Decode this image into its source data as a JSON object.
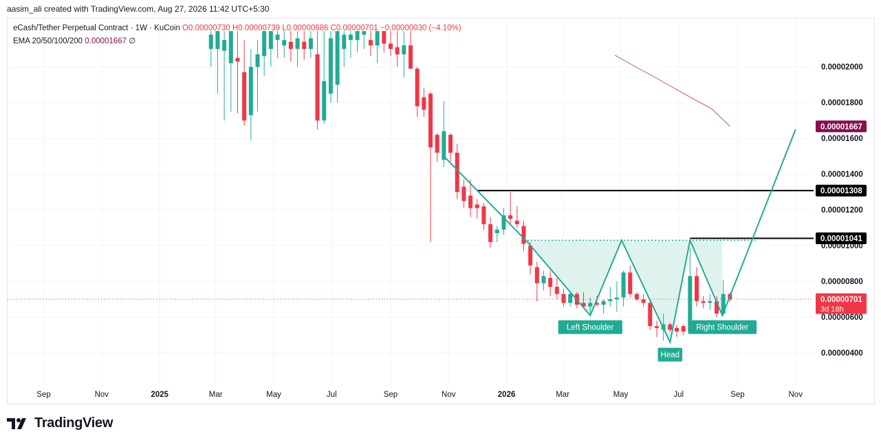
{
  "header": {
    "credit": "aasim_ali created with TradingView.com, Aug 27, 2026 11:42 UTC+5:30"
  },
  "legend": {
    "symbol": "eCash/Tether Perpetual Contract · 1W · KuCoin",
    "open": "O0.00000730",
    "high": "H0.00000739",
    "low": "L0.00000686",
    "close": "C0.00000701",
    "change": "−0.00000030 (−4.10%)",
    "ema_label": "EMA 20/50/100/200",
    "ema_value": "0.00001667",
    "ema_suffix": "∅"
  },
  "footer": {
    "brand": "TradingView"
  },
  "colors": {
    "up": "#22ab94",
    "down": "#f23645",
    "ema": "#c2787f",
    "pattern_line": "#22ab94",
    "pattern_fill": "#d7f0ea",
    "grid": "#f0f3fa",
    "axis_text": "#131722",
    "ema_label_bg": "#880e4f",
    "price_label_bg": "#f23645",
    "level_label_bg": "#000000"
  },
  "chart_data": {
    "type": "candlestick",
    "timeframe": "1W",
    "x_ticks": [
      {
        "date": "2024-09-01",
        "label": "Sep",
        "bold": false
      },
      {
        "date": "2024-11-01",
        "label": "Nov",
        "bold": false
      },
      {
        "date": "2025-01-01",
        "label": "2025",
        "bold": true
      },
      {
        "date": "2025-03-01",
        "label": "Mar",
        "bold": false
      },
      {
        "date": "2025-05-01",
        "label": "May",
        "bold": false
      },
      {
        "date": "2025-07-01",
        "label": "Jul",
        "bold": false
      },
      {
        "date": "2025-09-01",
        "label": "Sep",
        "bold": false
      },
      {
        "date": "2025-11-01",
        "label": "Nov",
        "bold": false
      },
      {
        "date": "2026-01-01",
        "label": "2026",
        "bold": true
      },
      {
        "date": "2026-03-01",
        "label": "Mar",
        "bold": false
      },
      {
        "date": "2026-05-01",
        "label": "May",
        "bold": false
      },
      {
        "date": "2026-07-01",
        "label": "Jul",
        "bold": false
      },
      {
        "date": "2026-09-01",
        "label": "Sep",
        "bold": false
      },
      {
        "date": "2026-11-01",
        "label": "Nov",
        "bold": false
      }
    ],
    "x_range": [
      "2024-07-25",
      "2026-11-20"
    ],
    "y_ticks": [
      {
        "value": 4e-06,
        "label": "0.00000400"
      },
      {
        "value": 6e-06,
        "label": "0.00000600"
      },
      {
        "value": 8e-06,
        "label": "0.00000800"
      },
      {
        "value": 1e-05,
        "label": "0.00001000"
      },
      {
        "value": 1.2e-05,
        "label": "0.00001200"
      },
      {
        "value": 1.4e-05,
        "label": "0.00001400"
      },
      {
        "value": 1.6e-05,
        "label": "0.00001600"
      },
      {
        "value": 1.8e-05,
        "label": "0.00001800"
      },
      {
        "value": 2e-05,
        "label": "0.00002000"
      }
    ],
    "y_range": [
      2.2e-06,
      2.27e-05
    ],
    "candles": [
      {
        "date": "2025-02-24",
        "o": 21.0,
        "h": 22.0,
        "l": 20.0,
        "c": 21.8
      },
      {
        "date": "2025-03-03",
        "o": 21.0,
        "h": 22.0,
        "l": 18.5,
        "c": 22.0
      },
      {
        "date": "2025-03-10",
        "o": 20.9,
        "h": 22.0,
        "l": 17.0,
        "c": 21.5
      },
      {
        "date": "2025-03-17",
        "o": 20.2,
        "h": 22.0,
        "l": 17.5,
        "c": 22.0
      },
      {
        "date": "2025-03-24",
        "o": 20.5,
        "h": 22.0,
        "l": 17.4,
        "c": 20.3
      },
      {
        "date": "2025-03-31",
        "o": 19.7,
        "h": 21.5,
        "l": 16.7,
        "c": 17.0
      },
      {
        "date": "2025-04-07",
        "o": 17.3,
        "h": 21.0,
        "l": 15.9,
        "c": 20.0
      },
      {
        "date": "2025-04-14",
        "o": 20.0,
        "h": 21.5,
        "l": 17.5,
        "c": 20.7
      },
      {
        "date": "2025-04-21",
        "o": 20.6,
        "h": 22.0,
        "l": 19.5,
        "c": 22.0
      },
      {
        "date": "2025-04-28",
        "o": 21.0,
        "h": 22.0,
        "l": 20.0,
        "c": 22.0
      },
      {
        "date": "2025-05-05",
        "o": 21.5,
        "h": 22.0,
        "l": 20.5,
        "c": 21.8
      },
      {
        "date": "2025-05-12",
        "o": 21.2,
        "h": 22.0,
        "l": 20.5,
        "c": 21.5
      },
      {
        "date": "2025-05-19",
        "o": 21.4,
        "h": 22.0,
        "l": 20.3,
        "c": 21.0
      },
      {
        "date": "2025-05-26",
        "o": 21.0,
        "h": 22.0,
        "l": 20.0,
        "c": 21.6
      },
      {
        "date": "2025-06-02",
        "o": 21.4,
        "h": 22.0,
        "l": 20.4,
        "c": 21.0
      },
      {
        "date": "2025-06-09",
        "o": 21.0,
        "h": 22.0,
        "l": 20.5,
        "c": 21.6
      },
      {
        "date": "2025-06-16",
        "o": 20.7,
        "h": 22.0,
        "l": 16.5,
        "c": 17.0
      },
      {
        "date": "2025-06-23",
        "o": 17.0,
        "h": 22.0,
        "l": 16.8,
        "c": 19.2
      },
      {
        "date": "2025-06-30",
        "o": 18.5,
        "h": 22.0,
        "l": 18.0,
        "c": 21.6
      },
      {
        "date": "2025-07-07",
        "o": 19.0,
        "h": 22.0,
        "l": 18.0,
        "c": 22.0
      },
      {
        "date": "2025-07-14",
        "o": 21.0,
        "h": 22.0,
        "l": 20.0,
        "c": 21.8
      },
      {
        "date": "2025-07-21",
        "o": 21.5,
        "h": 22.0,
        "l": 20.5,
        "c": 21.8
      },
      {
        "date": "2025-07-28",
        "o": 21.5,
        "h": 22.0,
        "l": 20.8,
        "c": 22.0
      },
      {
        "date": "2025-08-04",
        "o": 21.8,
        "h": 22.0,
        "l": 21.0,
        "c": 22.0
      },
      {
        "date": "2025-08-11",
        "o": 21.5,
        "h": 22.0,
        "l": 20.6,
        "c": 21.2
      },
      {
        "date": "2025-08-18",
        "o": 21.2,
        "h": 22.0,
        "l": 20.2,
        "c": 22.0
      },
      {
        "date": "2025-08-25",
        "o": 22.0,
        "h": 22.0,
        "l": 20.8,
        "c": 21.3
      },
      {
        "date": "2025-09-01",
        "o": 21.3,
        "h": 22.0,
        "l": 20.6,
        "c": 21.0
      },
      {
        "date": "2025-09-08",
        "o": 21.1,
        "h": 22.0,
        "l": 20.0,
        "c": 20.7
      },
      {
        "date": "2025-09-15",
        "o": 20.7,
        "h": 22.0,
        "l": 19.4,
        "c": 21.2
      },
      {
        "date": "2025-09-22",
        "o": 21.2,
        "h": 22.0,
        "l": 19.9,
        "c": 19.9
      },
      {
        "date": "2025-09-29",
        "o": 19.9,
        "h": 20.0,
        "l": 17.2,
        "c": 17.8
      },
      {
        "date": "2025-10-06",
        "o": 18.3,
        "h": 18.8,
        "l": 17.2,
        "c": 17.6
      },
      {
        "date": "2025-10-13",
        "o": 18.5,
        "h": 18.6,
        "l": 10.2,
        "c": 15.5
      },
      {
        "date": "2025-10-20",
        "o": 16.2,
        "h": 16.3,
        "l": 14.7,
        "c": 15.2
      },
      {
        "date": "2025-10-27",
        "o": 14.8,
        "h": 18.1,
        "l": 14.4,
        "c": 16.4
      },
      {
        "date": "2025-11-03",
        "o": 16.2,
        "h": 16.3,
        "l": 14.7,
        "c": 15.2
      },
      {
        "date": "2025-11-10",
        "o": 15.2,
        "h": 15.7,
        "l": 12.6,
        "c": 13.0
      },
      {
        "date": "2025-11-17",
        "o": 13.3,
        "h": 13.7,
        "l": 12.1,
        "c": 12.5
      },
      {
        "date": "2025-11-24",
        "o": 12.8,
        "h": 13.7,
        "l": 11.6,
        "c": 12.1
      },
      {
        "date": "2025-12-01",
        "o": 12.3,
        "h": 12.6,
        "l": 11.5,
        "c": 12.1
      },
      {
        "date": "2025-12-08",
        "o": 12.2,
        "h": 12.4,
        "l": 10.9,
        "c": 11.2
      },
      {
        "date": "2025-12-15",
        "o": 11.2,
        "h": 11.6,
        "l": 9.9,
        "c": 10.2
      },
      {
        "date": "2025-12-22",
        "o": 10.7,
        "h": 11.1,
        "l": 10.2,
        "c": 10.9
      },
      {
        "date": "2025-12-29",
        "o": 10.9,
        "h": 12.1,
        "l": 10.6,
        "c": 11.7
      },
      {
        "date": "2026-01-05",
        "o": 11.7,
        "h": 13.0,
        "l": 11.2,
        "c": 11.5
      },
      {
        "date": "2026-01-12",
        "o": 11.4,
        "h": 12.2,
        "l": 11.0,
        "c": 11.2
      },
      {
        "date": "2026-01-19",
        "o": 11.1,
        "h": 11.4,
        "l": 9.7,
        "c": 10.1
      },
      {
        "date": "2026-01-26",
        "o": 10.0,
        "h": 10.2,
        "l": 8.4,
        "c": 8.9
      },
      {
        "date": "2026-02-02",
        "o": 8.8,
        "h": 9.1,
        "l": 6.9,
        "c": 7.9
      },
      {
        "date": "2026-02-09",
        "o": 7.9,
        "h": 8.6,
        "l": 7.5,
        "c": 8.3
      },
      {
        "date": "2026-02-16",
        "o": 8.2,
        "h": 8.6,
        "l": 7.2,
        "c": 7.7
      },
      {
        "date": "2026-02-23",
        "o": 7.7,
        "h": 8.2,
        "l": 7.0,
        "c": 7.3
      },
      {
        "date": "2026-03-02",
        "o": 7.3,
        "h": 7.6,
        "l": 6.6,
        "c": 6.8
      },
      {
        "date": "2026-03-09",
        "o": 6.8,
        "h": 7.4,
        "l": 6.6,
        "c": 7.3
      },
      {
        "date": "2026-03-16",
        "o": 7.3,
        "h": 7.4,
        "l": 6.5,
        "c": 6.7
      },
      {
        "date": "2026-03-23",
        "o": 6.8,
        "h": 7.4,
        "l": 6.5,
        "c": 6.6
      },
      {
        "date": "2026-03-30",
        "o": 6.6,
        "h": 7.1,
        "l": 6.2,
        "c": 6.8
      },
      {
        "date": "2026-04-06",
        "o": 6.8,
        "h": 7.2,
        "l": 6.6,
        "c": 6.7
      },
      {
        "date": "2026-04-13",
        "o": 6.7,
        "h": 7.0,
        "l": 6.2,
        "c": 6.9
      },
      {
        "date": "2026-04-20",
        "o": 6.9,
        "h": 7.7,
        "l": 6.6,
        "c": 7.0
      },
      {
        "date": "2026-04-27",
        "o": 7.0,
        "h": 8.0,
        "l": 6.3,
        "c": 7.1
      },
      {
        "date": "2026-05-04",
        "o": 7.1,
        "h": 8.6,
        "l": 6.6,
        "c": 8.5
      },
      {
        "date": "2026-05-11",
        "o": 8.5,
        "h": 8.9,
        "l": 7.1,
        "c": 7.3
      },
      {
        "date": "2026-05-18",
        "o": 7.3,
        "h": 7.4,
        "l": 6.9,
        "c": 7.0
      },
      {
        "date": "2026-05-25",
        "o": 7.0,
        "h": 7.3,
        "l": 6.6,
        "c": 6.8
      },
      {
        "date": "2026-06-01",
        "o": 6.8,
        "h": 7.0,
        "l": 5.3,
        "c": 5.5
      },
      {
        "date": "2026-06-08",
        "o": 5.5,
        "h": 5.8,
        "l": 4.9,
        "c": 5.4
      },
      {
        "date": "2026-06-15",
        "o": 5.3,
        "h": 6.2,
        "l": 4.7,
        "c": 5.6
      },
      {
        "date": "2026-06-22",
        "o": 5.6,
        "h": 5.7,
        "l": 5.2,
        "c": 5.3
      },
      {
        "date": "2026-06-29",
        "o": 5.4,
        "h": 5.6,
        "l": 4.9,
        "c": 5.2
      },
      {
        "date": "2026-07-06",
        "o": 5.5,
        "h": 5.6,
        "l": 5.0,
        "c": 5.2
      },
      {
        "date": "2026-07-13",
        "o": 5.2,
        "h": 9.9,
        "l": 5.1,
        "c": 8.3
      },
      {
        "date": "2026-07-20",
        "o": 8.3,
        "h": 8.8,
        "l": 6.6,
        "c": 6.9
      },
      {
        "date": "2026-07-27",
        "o": 6.9,
        "h": 7.2,
        "l": 6.5,
        "c": 6.8
      },
      {
        "date": "2026-08-03",
        "o": 6.8,
        "h": 7.3,
        "l": 6.4,
        "c": 6.9
      },
      {
        "date": "2026-08-10",
        "o": 6.9,
        "h": 7.2,
        "l": 6.0,
        "c": 6.2
      },
      {
        "date": "2026-08-17",
        "o": 6.2,
        "h": 8.1,
        "l": 6.1,
        "c": 7.3
      },
      {
        "date": "2026-08-24",
        "o": 7.3,
        "h": 7.39,
        "l": 6.86,
        "c": 7.01
      }
    ],
    "candle_unit": 1e-06,
    "ema": [
      {
        "date": "2026-04-25",
        "value": 20.65
      },
      {
        "date": "2026-05-15",
        "value": 20.05
      },
      {
        "date": "2026-06-05",
        "value": 19.45
      },
      {
        "date": "2026-06-25",
        "value": 18.85
      },
      {
        "date": "2026-07-15",
        "value": 18.25
      },
      {
        "date": "2026-08-05",
        "value": 17.65
      },
      {
        "date": "2026-08-24",
        "value": 16.67
      }
    ],
    "pattern_points": [
      {
        "date": "2025-10-27",
        "value": 15.0
      },
      {
        "date": "2026-01-23",
        "value": 10.2
      },
      {
        "date": "2026-03-30",
        "value": 6.1
      },
      {
        "date": "2026-05-02",
        "value": 10.3
      },
      {
        "date": "2026-06-22",
        "value": 4.6
      },
      {
        "date": "2026-07-13",
        "value": 10.3
      },
      {
        "date": "2026-08-16",
        "value": 6.1
      },
      {
        "date": "2026-11-01",
        "value": 16.5
      }
    ],
    "neckline": {
      "value": 10.3,
      "from": "2026-01-23",
      "to": "2026-09-20"
    },
    "levels": [
      {
        "value": 13.08,
        "from": "2025-12-01",
        "label": "0.00001308"
      },
      {
        "value": 10.41,
        "from": "2026-07-13",
        "label": "0.00001041"
      }
    ],
    "annotations": [
      {
        "text": "Left Shoulder",
        "date": "2026-03-30",
        "value": 6.1
      },
      {
        "text": "Head",
        "date": "2026-06-22",
        "value": 4.6
      },
      {
        "text": "Right Shoulder",
        "date": "2026-08-16",
        "value": 6.1
      }
    ],
    "last_price": {
      "value": 7.01,
      "label": "0.00000701",
      "countdown": "3d 18h"
    },
    "ema_label": {
      "value": 16.67,
      "label": "0.00001667"
    }
  }
}
